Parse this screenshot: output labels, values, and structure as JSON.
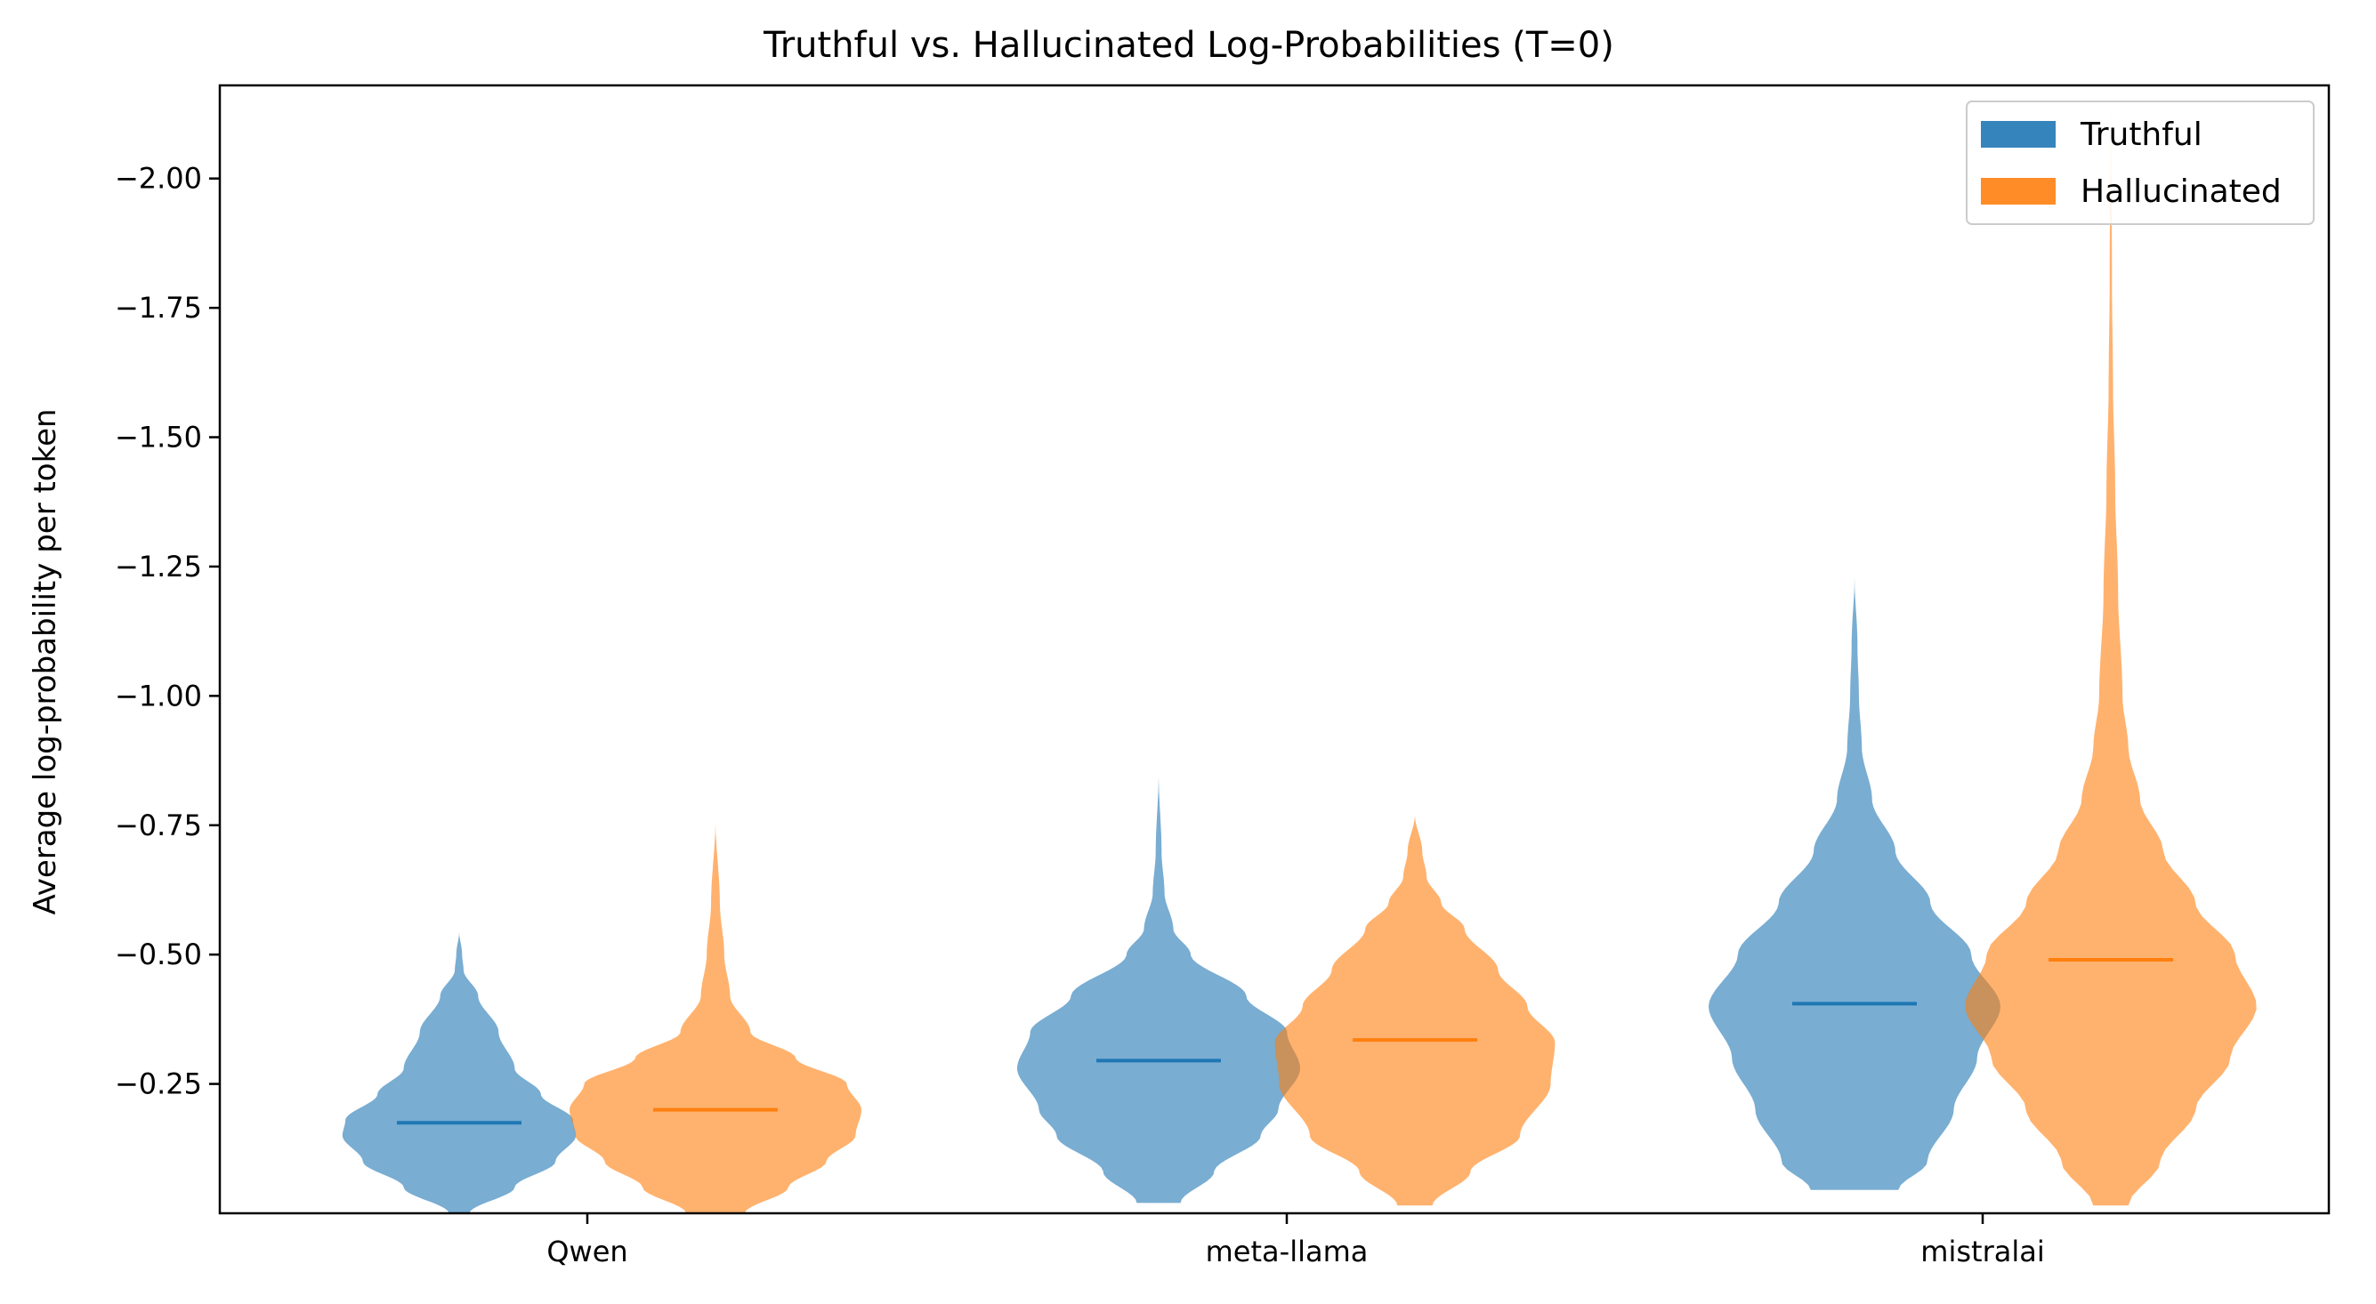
{
  "chart_data": {
    "type": "violin",
    "title": "Truthful vs. Hallucinated Log-Probabilities (T=0)",
    "xlabel": "",
    "ylabel": "Average log-probability per token",
    "categories": [
      "Qwen",
      "meta-llama",
      "mistralai"
    ],
    "yticks": [
      {
        "value": 0.25,
        "label": "−0.25"
      },
      {
        "value": 0.5,
        "label": "−0.50"
      },
      {
        "value": 0.75,
        "label": "−0.75"
      },
      {
        "value": 1.0,
        "label": "−1.00"
      },
      {
        "value": 1.25,
        "label": "−1.25"
      },
      {
        "value": 1.5,
        "label": "−1.50"
      },
      {
        "value": 1.75,
        "label": "−1.75"
      },
      {
        "value": 2.0,
        "label": "−2.00"
      }
    ],
    "ylim": [
      0.0,
      2.18
    ],
    "legend": {
      "position": "upper right"
    },
    "series": [
      {
        "name": "Truthful",
        "color": "#1f77b4",
        "median_color": "#1f77b4",
        "violins": [
          {
            "category": "Qwen",
            "median": 0.175,
            "min": 0.0,
            "max": 0.545,
            "profile": [
              [
                0.0,
                0.07
              ],
              [
                0.05,
                0.38
              ],
              [
                0.1,
                0.66
              ],
              [
                0.15,
                0.8
              ],
              [
                0.18,
                0.78
              ],
              [
                0.23,
                0.56
              ],
              [
                0.28,
                0.38
              ],
              [
                0.35,
                0.27
              ],
              [
                0.42,
                0.13
              ],
              [
                0.47,
                0.03
              ],
              [
                0.5,
                0.02
              ],
              [
                0.545,
                0.0
              ]
            ]
          },
          {
            "category": "meta-llama",
            "median": 0.295,
            "min": 0.02,
            "max": 0.85,
            "profile": [
              [
                0.02,
                0.15
              ],
              [
                0.08,
                0.38
              ],
              [
                0.15,
                0.7
              ],
              [
                0.2,
                0.82
              ],
              [
                0.28,
                0.97
              ],
              [
                0.35,
                0.88
              ],
              [
                0.42,
                0.6
              ],
              [
                0.5,
                0.22
              ],
              [
                0.55,
                0.1
              ],
              [
                0.62,
                0.04
              ],
              [
                0.7,
                0.02
              ],
              [
                0.85,
                0.0
              ]
            ]
          },
          {
            "category": "mistralai",
            "median": 0.405,
            "min": 0.045,
            "max": 1.23,
            "profile": [
              [
                0.045,
                0.3
              ],
              [
                0.1,
                0.5
              ],
              [
                0.2,
                0.68
              ],
              [
                0.3,
                0.84
              ],
              [
                0.4,
                1.0
              ],
              [
                0.5,
                0.8
              ],
              [
                0.6,
                0.52
              ],
              [
                0.7,
                0.28
              ],
              [
                0.8,
                0.12
              ],
              [
                0.9,
                0.05
              ],
              [
                1.0,
                0.03
              ],
              [
                1.1,
                0.02
              ],
              [
                1.23,
                0.0
              ]
            ]
          }
        ]
      },
      {
        "name": "Hallucinated",
        "color": "#ff7f0e",
        "median_color": "#ff7f0e",
        "violins": [
          {
            "category": "Qwen",
            "median": 0.2,
            "min": 0.0,
            "max": 0.76,
            "profile": [
              [
                0.0,
                0.2
              ],
              [
                0.05,
                0.5
              ],
              [
                0.1,
                0.76
              ],
              [
                0.15,
                0.96
              ],
              [
                0.2,
                1.0
              ],
              [
                0.25,
                0.9
              ],
              [
                0.3,
                0.55
              ],
              [
                0.35,
                0.24
              ],
              [
                0.42,
                0.1
              ],
              [
                0.5,
                0.06
              ],
              [
                0.6,
                0.03
              ],
              [
                0.76,
                0.0
              ]
            ]
          },
          {
            "category": "meta-llama",
            "median": 0.335,
            "min": 0.015,
            "max": 0.77,
            "profile": [
              [
                0.015,
                0.12
              ],
              [
                0.08,
                0.38
              ],
              [
                0.15,
                0.72
              ],
              [
                0.25,
                0.93
              ],
              [
                0.33,
                0.96
              ],
              [
                0.4,
                0.77
              ],
              [
                0.47,
                0.57
              ],
              [
                0.55,
                0.34
              ],
              [
                0.6,
                0.18
              ],
              [
                0.65,
                0.08
              ],
              [
                0.7,
                0.05
              ],
              [
                0.77,
                0.0
              ]
            ]
          },
          {
            "category": "mistralai",
            "median": 0.49,
            "min": 0.015,
            "max": 2.18,
            "profile": [
              [
                0.015,
                0.12
              ],
              [
                0.1,
                0.34
              ],
              [
                0.2,
                0.58
              ],
              [
                0.3,
                0.82
              ],
              [
                0.4,
                1.0
              ],
              [
                0.5,
                0.85
              ],
              [
                0.6,
                0.58
              ],
              [
                0.7,
                0.36
              ],
              [
                0.8,
                0.2
              ],
              [
                0.9,
                0.12
              ],
              [
                1.0,
                0.08
              ],
              [
                1.2,
                0.05
              ],
              [
                1.4,
                0.03
              ],
              [
                1.6,
                0.015
              ],
              [
                1.8,
                0.008
              ],
              [
                2.18,
                0.0
              ]
            ]
          }
        ]
      }
    ]
  }
}
